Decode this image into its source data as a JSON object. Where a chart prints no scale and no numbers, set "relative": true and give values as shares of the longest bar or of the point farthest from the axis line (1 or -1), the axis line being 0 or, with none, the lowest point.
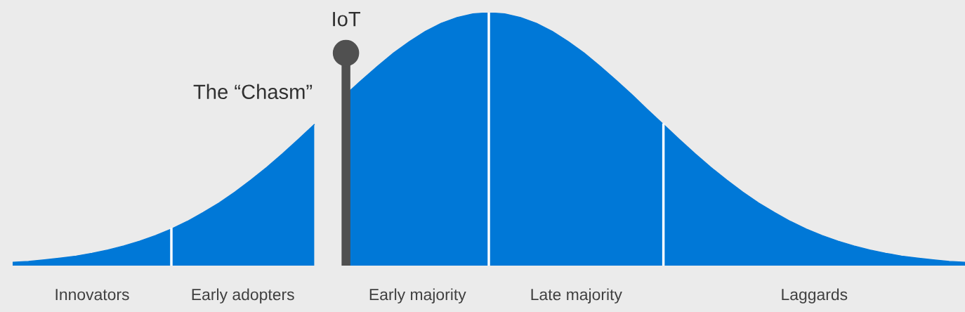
{
  "chart_data": {
    "type": "area",
    "relative": true,
    "categories": [
      null,
      null,
      null,
      null,
      null,
      null,
      null,
      null,
      null,
      null,
      null,
      null,
      null,
      null,
      null,
      null,
      null,
      null,
      null,
      null,
      null,
      null,
      null,
      null,
      null,
      null,
      null,
      null,
      null,
      null,
      null,
      null,
      null,
      null,
      null,
      null,
      null,
      null,
      null,
      null,
      null,
      null,
      null,
      null,
      null,
      null,
      null,
      null,
      null,
      null,
      null,
      null,
      null,
      null,
      null,
      null,
      null,
      null,
      null,
      null,
      null
    ],
    "series": [
      {
        "name": "Innovators",
        "color": "#0078d7",
        "values": [
          0.013,
          0.017,
          0.023,
          0.03,
          0.038,
          0.049,
          0.062,
          0.078,
          0.097,
          0.119,
          0.145,
          null,
          null,
          null,
          null,
          null,
          null,
          null,
          null,
          null,
          null,
          null,
          null,
          null,
          null,
          null,
          null,
          null,
          null,
          null,
          null,
          null,
          null,
          null,
          null,
          null,
          null,
          null,
          null,
          null,
          null,
          null,
          null,
          null,
          null,
          null,
          null,
          null,
          null,
          null,
          null,
          null,
          null,
          null,
          null,
          null,
          null,
          null,
          null,
          null,
          null
        ]
      },
      {
        "name": "Early adopters",
        "color": "#0078d7",
        "values": [
          null,
          null,
          null,
          null,
          null,
          null,
          null,
          null,
          null,
          null,
          0.145,
          0.175,
          0.21,
          0.248,
          0.291,
          0.338,
          0.388,
          0.442,
          0.499,
          0.558,
          null,
          null,
          null,
          null,
          null,
          null,
          null,
          null,
          null,
          null,
          null,
          null,
          null,
          null,
          null,
          null,
          null,
          null,
          null,
          null,
          null,
          null,
          null,
          null,
          null,
          null,
          null,
          null,
          null,
          null,
          null,
          null,
          null,
          null,
          null,
          null,
          null,
          null,
          null,
          null,
          null
        ]
      },
      {
        "name": "Early majority",
        "color": "#0078d7",
        "values": [
          null,
          null,
          null,
          null,
          null,
          null,
          null,
          null,
          null,
          null,
          null,
          null,
          null,
          null,
          null,
          null,
          null,
          null,
          null,
          null,
          null,
          0.677,
          0.734,
          0.789,
          0.841,
          0.886,
          0.926,
          0.958,
          0.981,
          0.995,
          1,
          null,
          null,
          null,
          null,
          null,
          null,
          null,
          null,
          null,
          null,
          null,
          null,
          null,
          null,
          null,
          null,
          null,
          null,
          null,
          null,
          null,
          null,
          null,
          null,
          null,
          null,
          null,
          null,
          null,
          null
        ]
      },
      {
        "name": "Late majority",
        "color": "#0078d7",
        "values": [
          null,
          null,
          null,
          null,
          null,
          null,
          null,
          null,
          null,
          null,
          null,
          null,
          null,
          null,
          null,
          null,
          null,
          null,
          null,
          null,
          null,
          null,
          null,
          null,
          null,
          null,
          null,
          null,
          null,
          null,
          1,
          0.995,
          0.981,
          0.958,
          0.926,
          0.886,
          0.841,
          0.789,
          0.734,
          0.677,
          0.617,
          0.558,
          null,
          null,
          null,
          null,
          null,
          null,
          null,
          null,
          null,
          null,
          null,
          null,
          null,
          null,
          null,
          null,
          null,
          null,
          null
        ]
      },
      {
        "name": "Laggards",
        "color": "#0078d7",
        "values": [
          null,
          null,
          null,
          null,
          null,
          null,
          null,
          null,
          null,
          null,
          null,
          null,
          null,
          null,
          null,
          null,
          null,
          null,
          null,
          null,
          null,
          null,
          null,
          null,
          null,
          null,
          null,
          null,
          null,
          null,
          null,
          null,
          null,
          null,
          null,
          null,
          null,
          null,
          null,
          null,
          null,
          0.558,
          0.499,
          0.442,
          0.388,
          0.338,
          0.291,
          0.248,
          0.21,
          0.175,
          0.145,
          0.119,
          0.097,
          0.078,
          0.062,
          0.049,
          0.038,
          0.03,
          0.023,
          0.017,
          0.013
        ]
      }
    ],
    "annotations": [
      "The “Chasm”",
      "IoT"
    ]
  }
}
